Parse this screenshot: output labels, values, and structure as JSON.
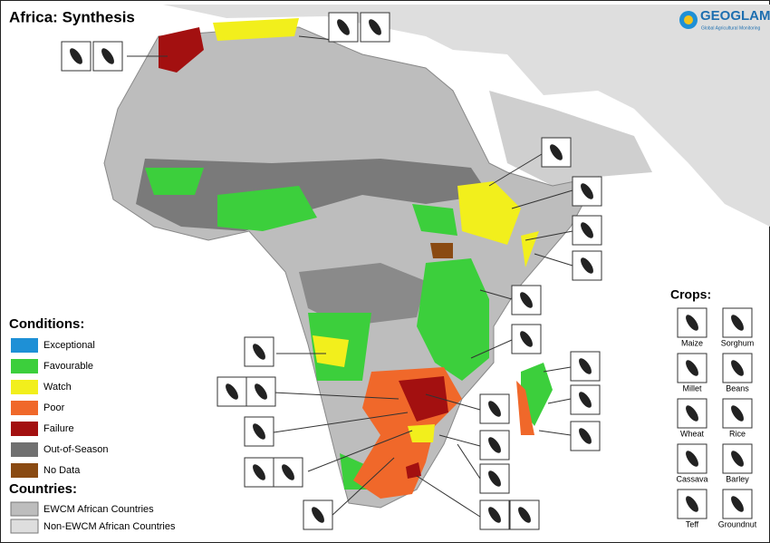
{
  "title": "Africa: Synthesis",
  "logo": {
    "name": "GEOGLAM",
    "tagline": "Global Agricultural Monitoring"
  },
  "conditions": {
    "heading": "Conditions:",
    "items": [
      {
        "label": "Exceptional",
        "color": "#1e90d6"
      },
      {
        "label": "Favourable",
        "color": "#3ccf3c"
      },
      {
        "label": "Watch",
        "color": "#f2ef1c"
      },
      {
        "label": "Poor",
        "color": "#f0682a"
      },
      {
        "label": "Failure",
        "color": "#a31010"
      },
      {
        "label": "Out-of-Season",
        "color": "#707070"
      },
      {
        "label": "No Data",
        "color": "#8a4a12"
      }
    ]
  },
  "countries": {
    "heading": "Countries:",
    "items": [
      {
        "label": "EWCM African Countries",
        "color": "#bdbdbd"
      },
      {
        "label": "Non-EWCM African Countries",
        "color": "#dedede"
      }
    ]
  },
  "crops": {
    "heading": "Crops:",
    "items": [
      "Maize",
      "Sorghum",
      "Millet",
      "Beans",
      "Wheat",
      "Rice",
      "Cassava",
      "Barley",
      "Teff",
      "Groundnut"
    ]
  }
}
